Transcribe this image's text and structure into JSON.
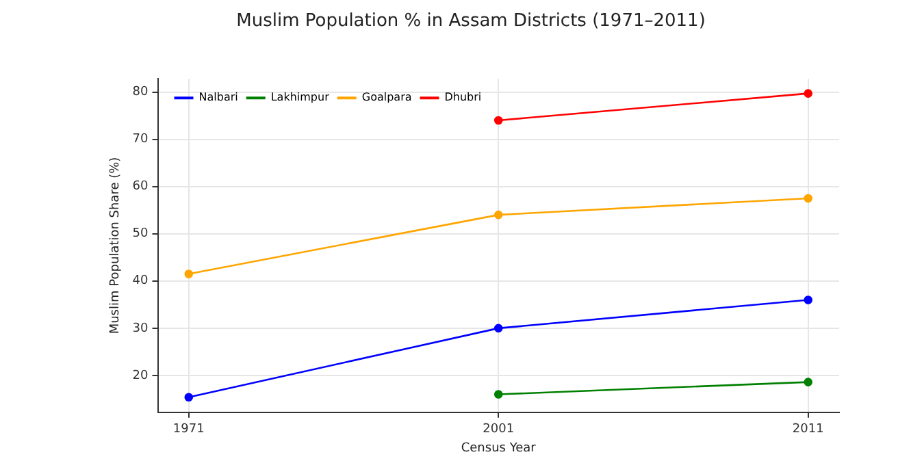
{
  "chart_data": {
    "type": "line",
    "title": "Muslim Population % in Assam Districts (1971–2011)",
    "xlabel": "Census Year",
    "ylabel": "Muslim Population Share (%)",
    "categories": [
      "1971",
      "2001",
      "2011"
    ],
    "series": [
      {
        "name": "Nalbari",
        "color": "#0000ff",
        "values": [
          15.4,
          30,
          36
        ]
      },
      {
        "name": "Lakhimpur",
        "color": "#008000",
        "values": [
          null,
          16,
          18.6
        ]
      },
      {
        "name": "Goalpara",
        "color": "#ffa500",
        "values": [
          41.5,
          54,
          57.5
        ]
      },
      {
        "name": "Dhubri",
        "color": "#ff0000",
        "values": [
          null,
          74,
          79.7
        ]
      }
    ],
    "ylim": [
      12.2,
      82.8
    ],
    "yticks": [
      20,
      30,
      40,
      50,
      60,
      70,
      80
    ],
    "grid": true,
    "legend": "top left",
    "marker": "circle",
    "line_style": "solid"
  }
}
